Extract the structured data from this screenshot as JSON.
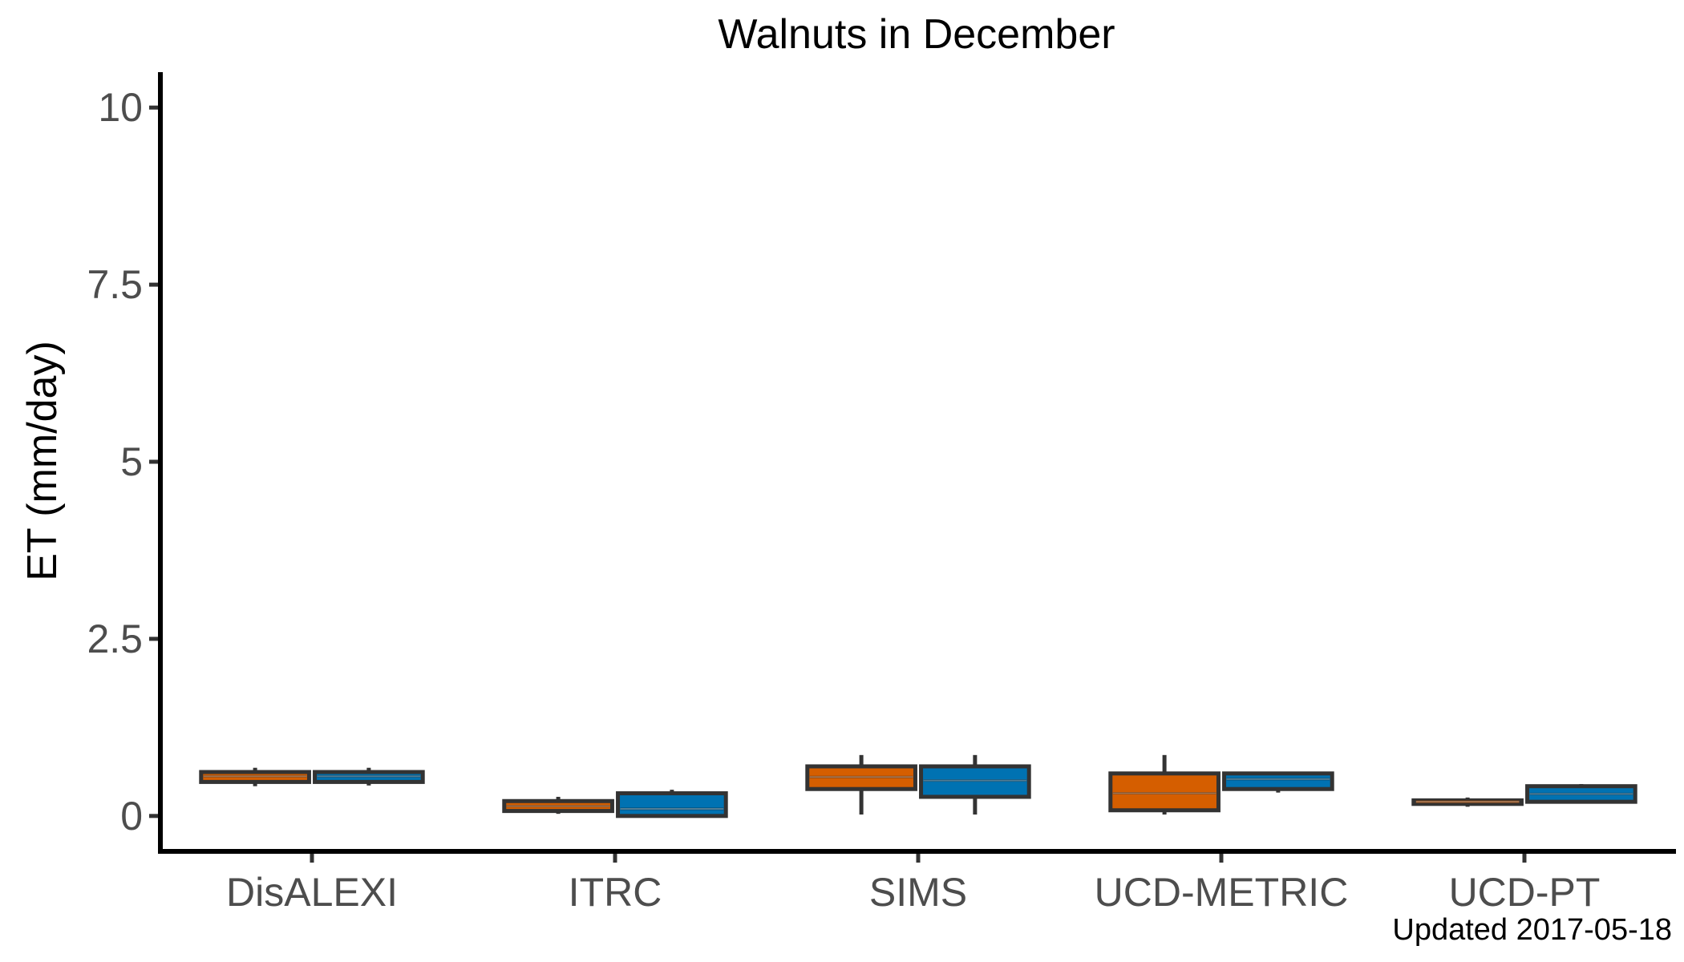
{
  "chart_data": {
    "type": "boxplot",
    "title": "Walnuts in December",
    "xlabel": "",
    "ylabel": "ET (mm/day)",
    "ylim": [
      -0.5,
      10.5
    ],
    "yticks": [
      0,
      2.5,
      5,
      7.5,
      10
    ],
    "ytick_labels": [
      "0",
      "2.5",
      "5",
      "7.5",
      "10"
    ],
    "grid": false,
    "legend": "none",
    "categories": [
      "DisALEXI",
      "ITRC",
      "SIMS",
      "UCD-METRIC",
      "UCD-PT"
    ],
    "series": [
      {
        "color": "#D55E00",
        "boxes": [
          {
            "min": 0.42,
            "q1": 0.48,
            "median": 0.56,
            "q3": 0.62,
            "max": 0.68
          },
          {
            "min": 0.03,
            "q1": 0.07,
            "median": 0.14,
            "q3": 0.21,
            "max": 0.27
          },
          {
            "min": 0.02,
            "q1": 0.38,
            "median": 0.55,
            "q3": 0.7,
            "max": 0.86
          },
          {
            "min": 0.02,
            "q1": 0.08,
            "median": 0.32,
            "q3": 0.6,
            "max": 0.86
          },
          {
            "min": 0.13,
            "q1": 0.17,
            "median": 0.2,
            "q3": 0.22,
            "max": 0.26
          }
        ]
      },
      {
        "color": "#0072B2",
        "boxes": [
          {
            "min": 0.43,
            "q1": 0.48,
            "median": 0.56,
            "q3": 0.62,
            "max": 0.68
          },
          {
            "min": 0.0,
            "q1": 0.0,
            "median": 0.1,
            "q3": 0.32,
            "max": 0.37
          },
          {
            "min": 0.02,
            "q1": 0.27,
            "median": 0.5,
            "q3": 0.7,
            "max": 0.86
          },
          {
            "min": 0.33,
            "q1": 0.38,
            "median": 0.52,
            "q3": 0.6,
            "max": 0.6
          },
          {
            "min": 0.18,
            "q1": 0.2,
            "median": 0.31,
            "q3": 0.42,
            "max": 0.45
          }
        ]
      }
    ]
  },
  "footer": {
    "updated_note": "Updated  2017-05-18"
  }
}
